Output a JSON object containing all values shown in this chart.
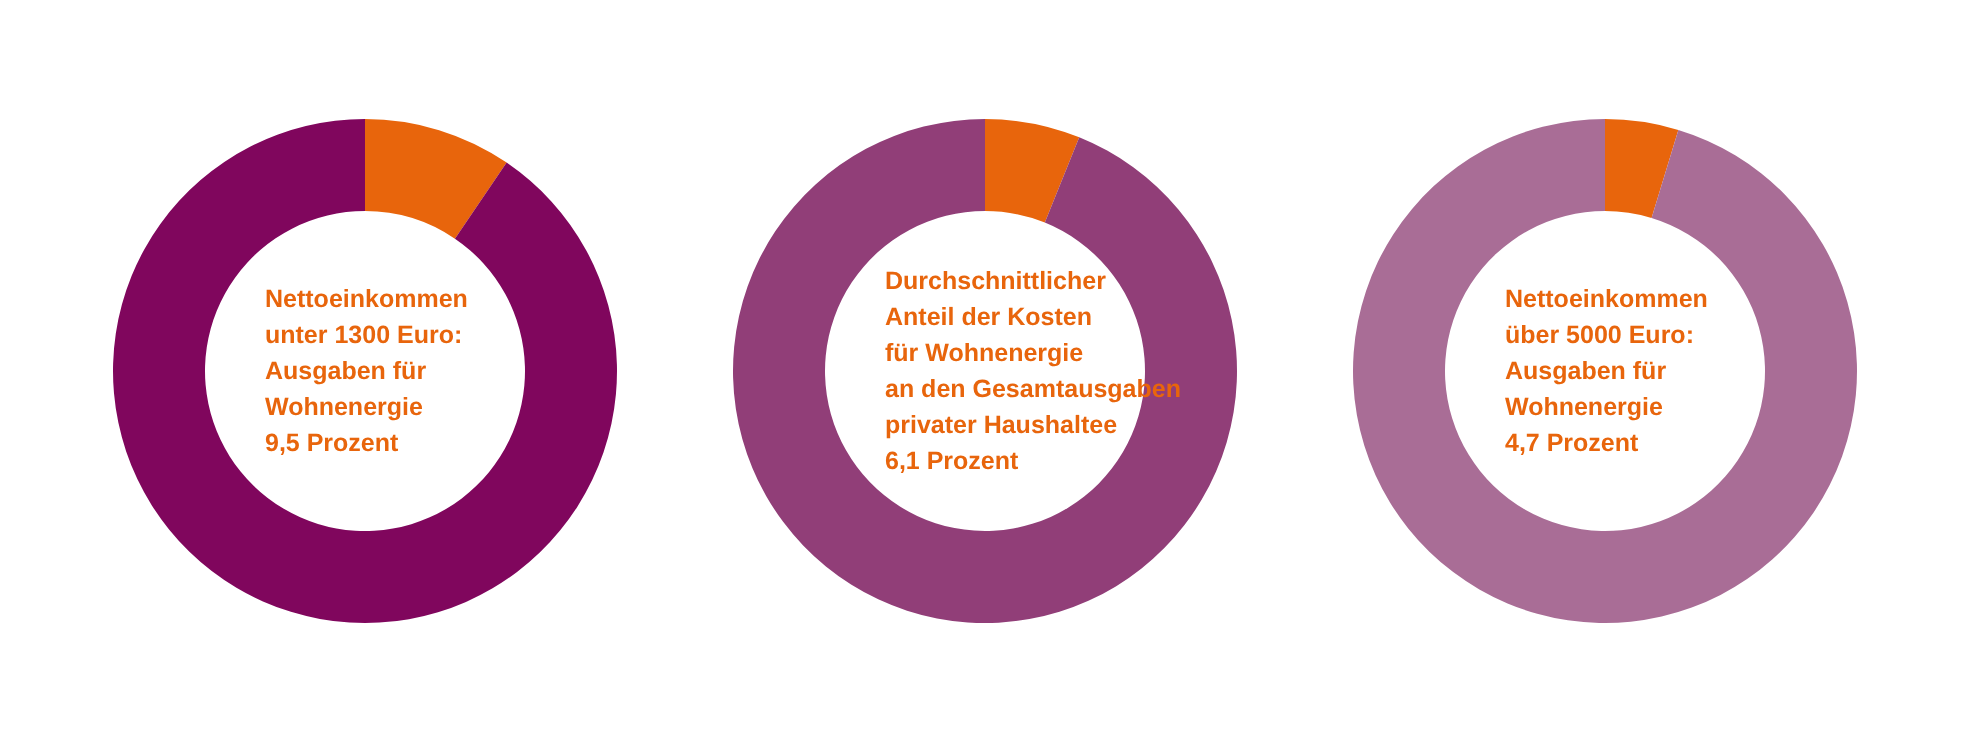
{
  "chart_data": [
    {
      "type": "donut",
      "categories": [
        null,
        null
      ],
      "values": [
        9.5,
        90.5
      ],
      "colors": [
        "#e8650c",
        "#80065d"
      ],
      "annotations": [
        "Nettoeinkommen",
        "unter 1300 Euro:",
        "Ausgaben für",
        "Wohnenergie",
        "9,5 Prozent"
      ]
    },
    {
      "type": "donut",
      "categories": [
        null,
        null
      ],
      "values": [
        6.1,
        93.9
      ],
      "colors": [
        "#e8650c",
        "#913e78"
      ],
      "annotations": [
        "Durchschnittlicher",
        "Anteil der Kosten",
        "für Wohnenergie",
        "an den Gesamtausgaben",
        "privater Haushaltee",
        "6,1 Prozent"
      ]
    },
    {
      "type": "donut",
      "categories": [
        null,
        null
      ],
      "values": [
        4.7,
        95.3
      ],
      "colors": [
        "#e8650c",
        "#a96d96"
      ],
      "annotations": [
        "Nettoeinkommen",
        "über 5000 Euro:",
        "Ausgaben für",
        "Wohnenergie",
        "4,7 Prozent"
      ]
    }
  ]
}
